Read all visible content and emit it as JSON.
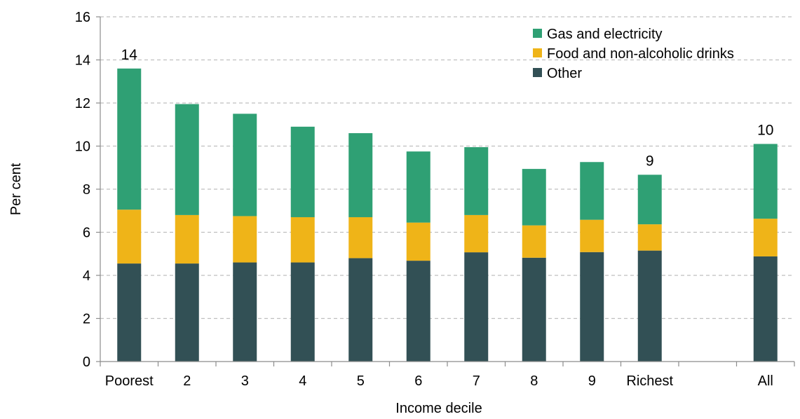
{
  "chart_data": {
    "type": "bar",
    "stacked": true,
    "categories": [
      "Poorest",
      "2",
      "3",
      "4",
      "5",
      "6",
      "7",
      "8",
      "9",
      "Richest",
      "",
      "All"
    ],
    "series": [
      {
        "name": "Other",
        "color": "#325055",
        "values": [
          4.55,
          4.55,
          4.6,
          4.6,
          4.8,
          4.68,
          5.07,
          4.82,
          5.08,
          5.15,
          null,
          4.88
        ]
      },
      {
        "name": "Food and non-alcoholic drinks",
        "color": "#EFB418",
        "values": [
          2.5,
          2.25,
          2.15,
          2.1,
          1.9,
          1.77,
          1.73,
          1.5,
          1.5,
          1.22,
          null,
          1.75
        ]
      },
      {
        "name": "Gas and electricity",
        "color": "#2FA074",
        "values": [
          6.55,
          5.15,
          4.75,
          4.2,
          3.9,
          3.3,
          3.15,
          2.62,
          2.68,
          2.3,
          null,
          3.47
        ]
      }
    ],
    "data_labels": [
      {
        "category": "Poorest",
        "text": "14"
      },
      {
        "category": "Richest",
        "text": "9"
      },
      {
        "category": "All",
        "text": "10"
      }
    ],
    "legend_order": [
      "Gas and electricity",
      "Food and non-alcoholic drinks",
      "Other"
    ],
    "xlabel": "Income decile",
    "ylabel": "Per cent",
    "ylim": [
      0,
      16
    ],
    "yticks": [
      0,
      2,
      4,
      6,
      8,
      10,
      12,
      14,
      16
    ],
    "grid": true,
    "legend_position": "top-right"
  }
}
